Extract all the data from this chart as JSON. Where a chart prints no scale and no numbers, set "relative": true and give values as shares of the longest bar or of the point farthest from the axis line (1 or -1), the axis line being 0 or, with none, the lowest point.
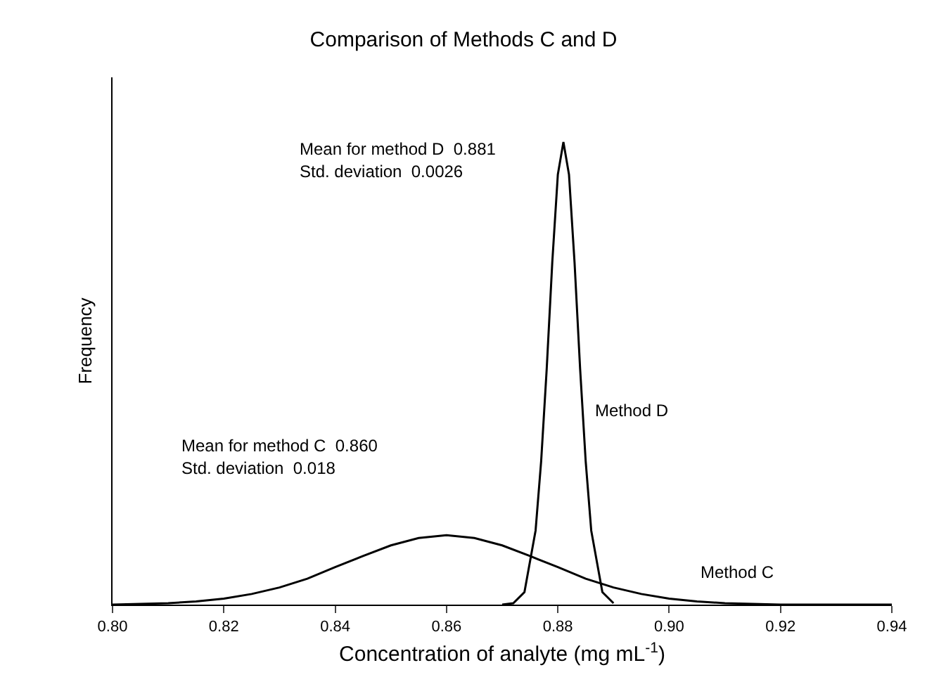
{
  "chart_data": {
    "type": "line",
    "title": "Comparison of Methods C and D",
    "xlabel": "Concentration of analyte (mg mL$^{-1}$)",
    "ylabel": "Frequency",
    "relative": true,
    "legend": false,
    "grid": false,
    "marker": "none",
    "line_style": "solid",
    "xlim": [
      0.8,
      0.94
    ],
    "xticks": [
      {
        "value": 0.8,
        "label": "0.80"
      },
      {
        "value": 0.82,
        "label": "0.82"
      },
      {
        "value": 0.84,
        "label": "0.84"
      },
      {
        "value": 0.86,
        "label": "0.86"
      },
      {
        "value": 0.88,
        "label": "0.88"
      },
      {
        "value": 0.9,
        "label": "0.90"
      },
      {
        "value": 0.92,
        "label": "0.92"
      },
      {
        "value": 0.94,
        "label": "0.94"
      }
    ],
    "annotations": [
      "Mean for method D  0.881",
      "Std. deviation  0.0026",
      "Mean for method C  0.860",
      "Std. deviation  0.018"
    ],
    "series": [
      {
        "name": "Method D",
        "color": "#000000",
        "x": [
          0.87,
          0.872,
          0.874,
          0.876,
          0.877,
          0.878,
          0.879,
          0.88,
          0.881,
          0.882,
          0.883,
          0.884,
          0.885,
          0.886,
          0.888,
          0.89
        ],
        "values": [
          0,
          0.003,
          0.027,
          0.16,
          0.31,
          0.51,
          0.74,
          0.93,
          1,
          0.93,
          0.74,
          0.51,
          0.31,
          0.16,
          0.027,
          0.003
        ]
      },
      {
        "name": "Method C",
        "color": "#000000",
        "x": [
          0.8,
          0.81,
          0.815,
          0.82,
          0.825,
          0.83,
          0.835,
          0.84,
          0.845,
          0.85,
          0.855,
          0.86,
          0.865,
          0.87,
          0.875,
          0.88,
          0.885,
          0.89,
          0.895,
          0.9,
          0.905,
          0.91,
          0.92,
          0.94
        ],
        "values": [
          0,
          0.003,
          0.007,
          0.013,
          0.023,
          0.037,
          0.056,
          0.081,
          0.105,
          0.128,
          0.144,
          0.15,
          0.144,
          0.128,
          0.105,
          0.081,
          0.056,
          0.037,
          0.023,
          0.013,
          0.007,
          0.003,
          0,
          0
        ]
      }
    ]
  }
}
